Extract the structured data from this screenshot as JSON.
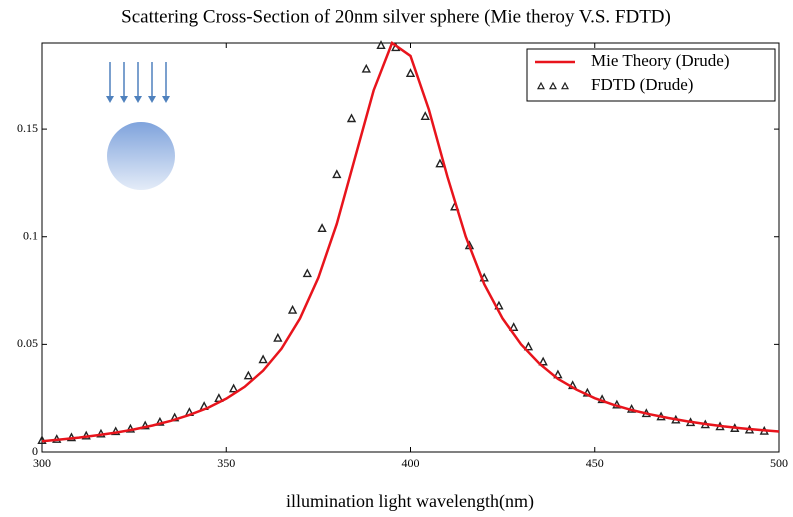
{
  "chart_data": {
    "type": "line",
    "title": "Scattering Cross-Section of 20nm silver sphere (Mie theroy V.S. FDTD)",
    "x_label": "illumination light wavelength(nm)",
    "xlim": [
      300,
      500
    ],
    "xticks": [
      300,
      350,
      400,
      450,
      500
    ],
    "ylim": [
      0,
      0.19
    ],
    "yticks": [
      0,
      0.05,
      0.1,
      0.15
    ],
    "legend": "upper-right",
    "series": [
      {
        "name": "Mie Theory (Drude)",
        "color": "#e8141c",
        "mode": "line",
        "x": [
          300,
          305,
          310,
          315,
          320,
          325,
          330,
          335,
          340,
          345,
          350,
          355,
          360,
          365,
          370,
          375,
          380,
          385,
          390,
          395,
          400,
          405,
          410,
          415,
          420,
          425,
          430,
          435,
          440,
          445,
          450,
          455,
          460,
          465,
          470,
          475,
          480,
          485,
          490,
          495,
          500
        ],
        "values": [
          0.005,
          0.0058,
          0.0067,
          0.0078,
          0.009,
          0.0105,
          0.0123,
          0.0145,
          0.0172,
          0.0205,
          0.0248,
          0.0303,
          0.0378,
          0.048,
          0.062,
          0.081,
          0.106,
          0.137,
          0.168,
          0.19,
          0.184,
          0.159,
          0.128,
          0.1,
          0.078,
          0.062,
          0.05,
          0.041,
          0.034,
          0.029,
          0.025,
          0.022,
          0.0195,
          0.0175,
          0.0158,
          0.0143,
          0.013,
          0.0119,
          0.011,
          0.0102,
          0.0095
        ]
      },
      {
        "name": "FDTD (Drude)",
        "color": "#222222",
        "mode": "markers",
        "x": [
          300,
          304,
          308,
          312,
          316,
          320,
          324,
          328,
          332,
          336,
          340,
          344,
          348,
          352,
          356,
          360,
          364,
          368,
          372,
          376,
          380,
          384,
          388,
          392,
          396,
          400,
          404,
          408,
          412,
          416,
          420,
          424,
          428,
          432,
          436,
          440,
          444,
          448,
          452,
          456,
          460,
          464,
          468,
          472,
          476,
          480,
          484,
          488,
          492,
          496
        ],
        "values": [
          0.0055,
          0.006,
          0.0068,
          0.0076,
          0.0085,
          0.0096,
          0.0108,
          0.0123,
          0.014,
          0.016,
          0.0185,
          0.0213,
          0.025,
          0.0295,
          0.0355,
          0.043,
          0.053,
          0.066,
          0.083,
          0.104,
          0.129,
          0.155,
          0.178,
          0.189,
          0.188,
          0.176,
          0.156,
          0.134,
          0.114,
          0.096,
          0.081,
          0.068,
          0.058,
          0.049,
          0.042,
          0.036,
          0.031,
          0.0275,
          0.0245,
          0.022,
          0.02,
          0.018,
          0.0165,
          0.015,
          0.0138,
          0.0128,
          0.0119,
          0.0111,
          0.0104,
          0.0098
        ]
      }
    ]
  }
}
